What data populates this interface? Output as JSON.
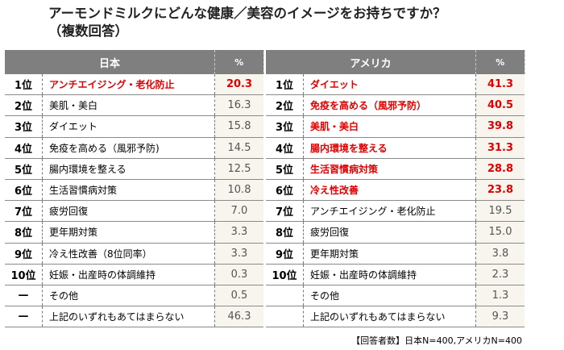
{
  "title_line1": "アーモンドミルクにどんな健康／美容のイメージをお持ちですか？",
  "title_line2": "（複数回答）",
  "japan": {
    "header": "日本",
    "pct_header": "%",
    "rows": [
      {
        "rank": "1位",
        "item": "アンチエイジング・老化防止",
        "pct": "20.3",
        "highlight": true
      },
      {
        "rank": "2位",
        "item": "美肌・美白",
        "pct": "16.3"
      },
      {
        "rank": "3位",
        "item": "ダイエット",
        "pct": "15.8"
      },
      {
        "rank": "4位",
        "item": "免疫を高める（風邪予防)",
        "pct": "14.5"
      },
      {
        "rank": "5位",
        "item": "腸内環境を整える",
        "pct": "12.5"
      },
      {
        "rank": "6位",
        "item": "生活習慣病対策",
        "pct": "10.8"
      },
      {
        "rank": "7位",
        "item": "疲労回復",
        "pct": "7.0"
      },
      {
        "rank": "8位",
        "item": "更年期対策",
        "pct": "3.3"
      },
      {
        "rank": "9位",
        "item": "冷え性改善（8位同率）",
        "pct": "3.3"
      },
      {
        "rank": "10位",
        "item": "妊娠・出産時の体調維持",
        "pct": "0.3"
      },
      {
        "rank": "—",
        "item": "その他",
        "pct": "0.5"
      },
      {
        "rank": "—",
        "item": "上記のいずれもあてはまらない",
        "pct": "46.3"
      }
    ]
  },
  "usa": {
    "header": "アメリカ",
    "pct_header": "%",
    "rows": [
      {
        "rank": "1位",
        "item": "ダイエット",
        "pct": "41.3",
        "highlight": true
      },
      {
        "rank": "2位",
        "item": "免疫を高める（風邪予防）",
        "pct": "40.5",
        "highlight": true
      },
      {
        "rank": "3位",
        "item": "美肌・美白",
        "pct": "39.8",
        "highlight": true
      },
      {
        "rank": "4位",
        "item": "腸内環境を整える",
        "pct": "31.3",
        "highlight": true
      },
      {
        "rank": "5位",
        "item": "生活習慣病対策",
        "pct": "28.8",
        "highlight": true
      },
      {
        "rank": "6位",
        "item": "冷え性改善",
        "pct": "23.8",
        "highlight": true
      },
      {
        "rank": "7位",
        "item": "アンチエイジング・老化防止",
        "pct": "19.5"
      },
      {
        "rank": "8位",
        "item": "疲労回復",
        "pct": "15.0"
      },
      {
        "rank": "9位",
        "item": "更年期対策",
        "pct": "3.8"
      },
      {
        "rank": "10位",
        "item": "妊娠・出産時の体調維持",
        "pct": "2.3"
      },
      {
        "rank": "",
        "item": "その他",
        "pct": "1.3"
      },
      {
        "rank": "",
        "item": "上記のいずれもあてはまらない",
        "pct": "9.3"
      }
    ]
  },
  "footnote": "【回答者数】日本N=400,アメリカN=400",
  "colors": {
    "header_bg": "#7f7f7f",
    "highlight": "#e00000",
    "pct_bg": "#f8f4ee"
  }
}
